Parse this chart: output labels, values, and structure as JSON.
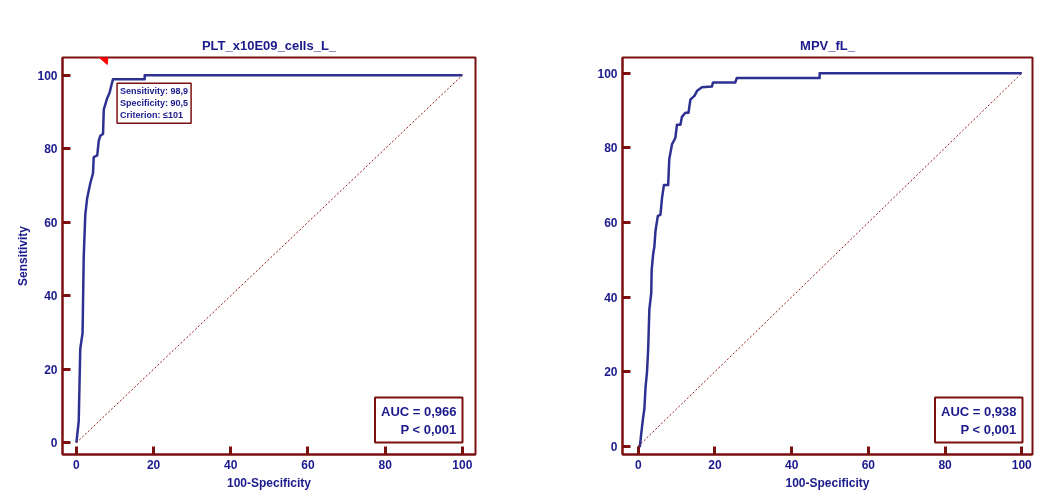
{
  "chart_data": [
    {
      "type": "line",
      "title": "PLT_x10E09_cells_L_",
      "xlabel": "100-Specificity",
      "ylabel": "Sensitivity",
      "xlim": [
        -3.6,
        103.4
      ],
      "ylim": [
        -3.2,
        104.8
      ],
      "xticks": [
        0,
        20,
        40,
        60,
        80,
        100
      ],
      "yticks": [
        0,
        20,
        40,
        60,
        80,
        100
      ],
      "grid": false,
      "series": [
        {
          "color": "#2e3192",
          "line_style": "solid",
          "x": [
            0,
            0.6,
            1.0,
            1.6,
            1.9,
            2.3,
            2.8,
            3.6,
            4.3,
            4.5,
            5.4,
            5.8,
            6.2,
            6.9,
            7.1,
            8.0,
            8.6,
            9.1,
            9.5,
            17.7,
            17.7,
            100
          ],
          "values": [
            0,
            5.8,
            25.5,
            29.9,
            50.5,
            62,
            66.6,
            70.6,
            73.3,
            77.7,
            78.2,
            82.2,
            83.5,
            84,
            90.7,
            93.8,
            95.2,
            97.4,
            98.9,
            98.9,
            100,
            100
          ]
        },
        {
          "color": "#8b1a1a",
          "line_style": "dotted",
          "x": [
            0,
            100
          ],
          "values": [
            0,
            100
          ]
        }
      ],
      "annotations": [
        {
          "text": "Sensitivity: 98,9\nSpecificity: 90,5\nCriterion: ≤101",
          "x": 9.5,
          "y": 98.9
        },
        "AUC = 0,966\nP < 0,001"
      ]
    },
    {
      "type": "line",
      "title": "MPV_fL_",
      "xlabel": "100-Specificity",
      "xlim": [
        -4.1,
        102.8
      ],
      "ylim": [
        -2.2,
        104.2
      ],
      "xticks": [
        0,
        20,
        40,
        60,
        80,
        100
      ],
      "yticks": [
        0,
        20,
        40,
        60,
        80,
        100
      ],
      "grid": false,
      "series": [
        {
          "color": "#2e3192",
          "line_style": "solid",
          "x": [
            0,
            0.43,
            0.8,
            1.3,
            1.6,
            1.9,
            2.3,
            2.6,
            2.9,
            3.4,
            3.5,
            3.9,
            4.2,
            4.5,
            5.1,
            5.8,
            6.2,
            6.7,
            7.8,
            8.1,
            8.8,
            9.7,
            10.1,
            11.0,
            11.4,
            12.3,
            13.1,
            13.6,
            14.7,
            15.3,
            16.6,
            19.2,
            19.5,
            25.3,
            25.7,
            47.3,
            47.3,
            100
          ],
          "values": [
            0,
            0,
            3.5,
            7.9,
            10,
            15.7,
            20.1,
            26.2,
            36.7,
            41.1,
            47.2,
            51.6,
            53.4,
            57.7,
            61.7,
            62.1,
            66.5,
            70,
            70,
            77,
            80.9,
            82.7,
            86.2,
            86.2,
            88.3,
            89.4,
            89.4,
            92.9,
            94,
            95.2,
            96.2,
            96.4,
            97.5,
            97.5,
            98.7,
            98.7,
            100,
            100
          ]
        },
        {
          "color": "#8b1a1a",
          "line_style": "dotted",
          "x": [
            0,
            100
          ],
          "values": [
            0,
            100
          ]
        }
      ],
      "annotations": [
        "AUC = 0,938\nP < 0,001"
      ]
    }
  ]
}
